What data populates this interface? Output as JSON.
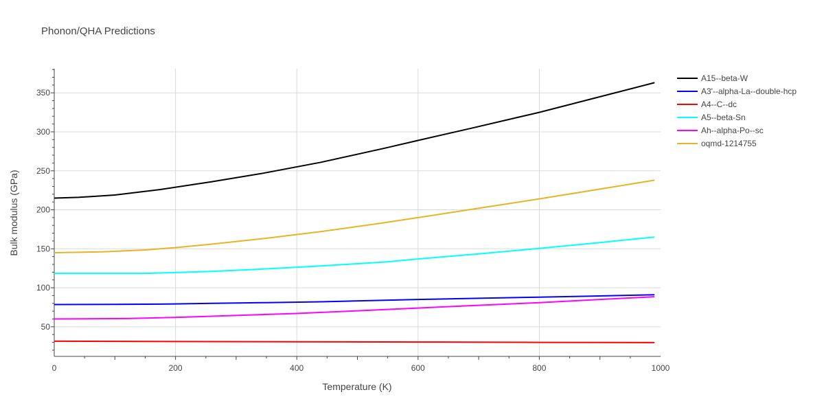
{
  "title": "Phonon/QHA Predictions",
  "chart_data": {
    "type": "line",
    "title": "Phonon/QHA Predictions",
    "xlabel": "Temperature (K)",
    "ylabel": "Bulk modulus (GPa)",
    "xlim": [
      0,
      1000
    ],
    "ylim": [
      12,
      381
    ],
    "x_ticks": [
      0,
      200,
      400,
      600,
      800,
      1000
    ],
    "y_ticks": [
      50,
      100,
      150,
      200,
      250,
      300,
      350
    ],
    "grid": true,
    "legend_position": "top-right",
    "series": [
      {
        "name": "A15--beta-W",
        "color": "#000000",
        "x": [
          0,
          40,
          100,
          175,
          260,
          345,
          440,
          545,
          600,
          690,
          800,
          900,
          990
        ],
        "values": [
          215,
          216,
          219,
          226,
          236,
          247,
          261,
          279,
          289,
          305,
          325,
          345,
          363
        ]
      },
      {
        "name": "A3'--alpha-La--double-hcp",
        "color": "#0000ff",
        "x": [
          0,
          100,
          175,
          260,
          350,
          440,
          545,
          600,
          700,
          800,
          900,
          990
        ],
        "values": [
          78.5,
          78.7,
          79,
          80,
          81,
          82,
          84,
          85,
          86.5,
          88,
          89.5,
          91
        ]
      },
      {
        "name": "A4--C--dc",
        "color": "#ff0000",
        "x": [
          0,
          200,
          400,
          600,
          800,
          990
        ],
        "values": [
          31.5,
          31,
          30.7,
          30.4,
          30,
          29.7
        ]
      },
      {
        "name": "A5--beta-Sn",
        "color": "#00ffff",
        "x": [
          0,
          150,
          200,
          260,
          345,
          440,
          545,
          600,
          700,
          800,
          900,
          990
        ],
        "values": [
          118.5,
          118.5,
          119.5,
          121,
          124,
          128,
          133,
          137,
          143.5,
          150.5,
          158,
          165
        ]
      },
      {
        "name": "Ah--alpha-Po--sc",
        "color": "#ff00ff",
        "x": [
          0,
          120,
          200,
          300,
          400,
          500,
          600,
          700,
          800,
          900,
          990
        ],
        "values": [
          60,
          60.5,
          62,
          64.5,
          67,
          70.5,
          74,
          77.5,
          81,
          85,
          88.5
        ]
      },
      {
        "name": "oqmd-1214755",
        "color": "#e6b422",
        "x": [
          0,
          80,
          150,
          200,
          260,
          345,
          440,
          545,
          600,
          700,
          800,
          900,
          990
        ],
        "values": [
          145,
          146,
          148.5,
          151.5,
          156,
          163,
          172,
          183.5,
          190,
          202,
          214,
          226.5,
          238
        ]
      }
    ]
  }
}
